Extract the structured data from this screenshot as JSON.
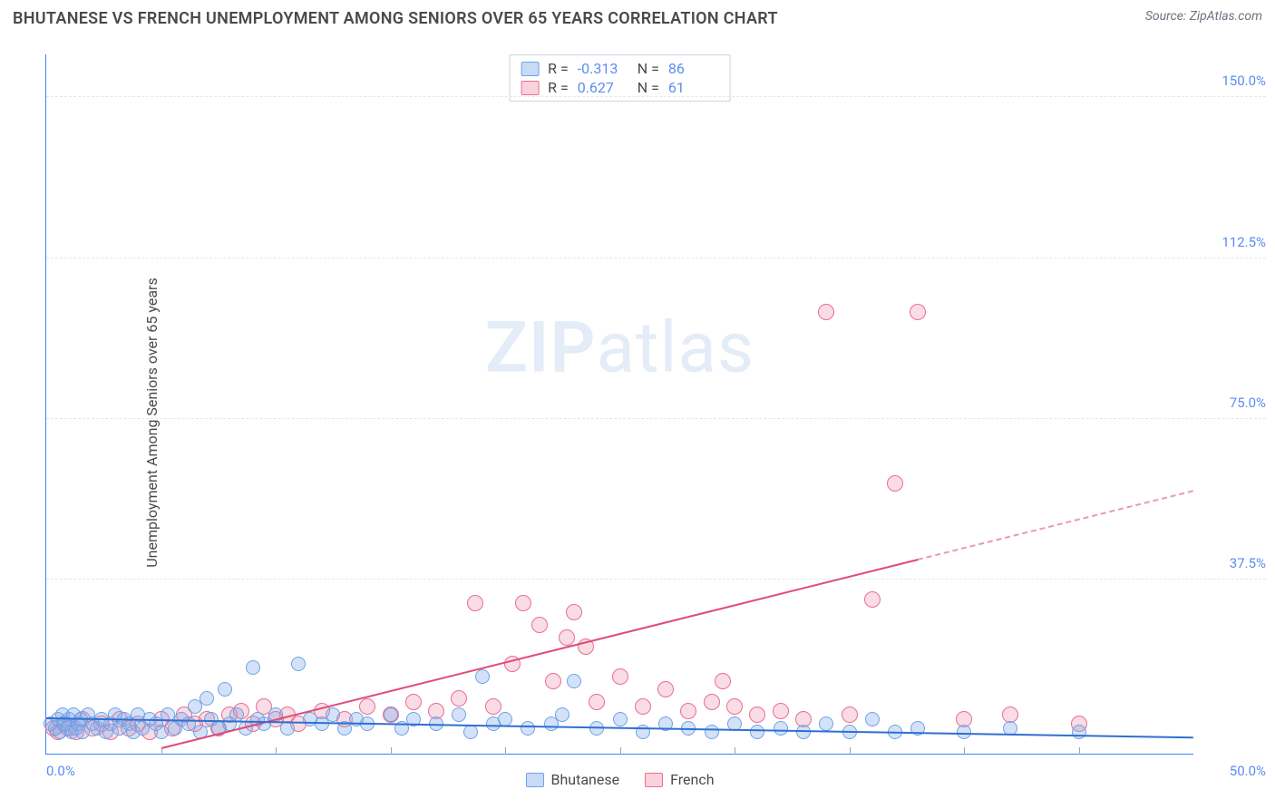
{
  "header": {
    "title": "BHUTANESE VS FRENCH UNEMPLOYMENT AMONG SENIORS OVER 65 YEARS CORRELATION CHART",
    "source_prefix": "Source: ",
    "source_name": "ZipAtlas.com"
  },
  "axes": {
    "ylabel": "Unemployment Among Seniors over 65 years",
    "xmin": 0,
    "xmax": 50,
    "ymin": -3,
    "ymax": 160,
    "yticks": [
      37.5,
      75.0,
      112.5,
      150.0
    ],
    "ytick_labels": [
      "37.5%",
      "75.0%",
      "112.5%",
      "150.0%"
    ],
    "x_left_label": "0.0%",
    "x_right_label": "50.0%",
    "xtick_positions": [
      5,
      10,
      15,
      20,
      25,
      30,
      35,
      40,
      45
    ],
    "grid_color": "#e5e7eb",
    "axis_color": "#3b82f6",
    "tick_label_color": "#5b8def"
  },
  "watermark": {
    "bold": "ZIP",
    "rest": "atlas"
  },
  "stats": {
    "rows": [
      {
        "swatch_fill": "#c7dbf6",
        "swatch_border": "#6ea2e8",
        "r_label": "R =",
        "r": "-0.313",
        "n_label": "N =",
        "n": "86"
      },
      {
        "swatch_fill": "#f9d2dc",
        "swatch_border": "#e86f91",
        "r_label": "R =",
        "r": "0.627",
        "n_label": "N =",
        "n": "61"
      }
    ]
  },
  "legend": {
    "items": [
      {
        "swatch_fill": "#c7dbf6",
        "swatch_border": "#6ea2e8",
        "label": "Bhutanese"
      },
      {
        "swatch_fill": "#f9d2dc",
        "swatch_border": "#e86f91",
        "label": "French"
      }
    ]
  },
  "series": {
    "bhutanese": {
      "color_fill": "rgba(129,173,235,0.35)",
      "color_border": "#6ea2e8",
      "marker_radius": 8,
      "trend": {
        "x1": 0,
        "y1": 5.0,
        "x2": 50,
        "y2": 0.5,
        "color": "#2f6fd1",
        "width": 2.5,
        "dash": false
      },
      "points": [
        [
          0.2,
          4
        ],
        [
          0.4,
          3
        ],
        [
          0.5,
          5
        ],
        [
          0.6,
          2
        ],
        [
          0.7,
          6
        ],
        [
          0.8,
          4
        ],
        [
          0.9,
          3
        ],
        [
          1.0,
          5
        ],
        [
          1.1,
          2
        ],
        [
          1.2,
          6
        ],
        [
          1.3,
          3
        ],
        [
          1.4,
          4
        ],
        [
          1.5,
          5
        ],
        [
          1.6,
          2
        ],
        [
          1.8,
          6
        ],
        [
          2.0,
          4
        ],
        [
          2.2,
          3
        ],
        [
          2.4,
          5
        ],
        [
          2.6,
          2
        ],
        [
          2.8,
          4
        ],
        [
          3.0,
          6
        ],
        [
          3.2,
          3
        ],
        [
          3.4,
          5
        ],
        [
          3.6,
          4
        ],
        [
          3.8,
          2
        ],
        [
          4.0,
          6
        ],
        [
          4.2,
          3
        ],
        [
          4.5,
          5
        ],
        [
          4.8,
          4
        ],
        [
          5.0,
          2
        ],
        [
          5.3,
          6
        ],
        [
          5.6,
          3
        ],
        [
          5.9,
          5
        ],
        [
          6.2,
          4
        ],
        [
          6.5,
          8
        ],
        [
          6.7,
          2
        ],
        [
          7.0,
          10
        ],
        [
          7.2,
          5
        ],
        [
          7.5,
          3
        ],
        [
          7.8,
          12
        ],
        [
          8.0,
          4
        ],
        [
          8.3,
          6
        ],
        [
          8.7,
          3
        ],
        [
          9.0,
          17
        ],
        [
          9.2,
          5
        ],
        [
          9.5,
          4
        ],
        [
          10.0,
          6
        ],
        [
          10.5,
          3
        ],
        [
          11.0,
          18
        ],
        [
          11.5,
          5
        ],
        [
          12.0,
          4
        ],
        [
          12.5,
          6
        ],
        [
          13.0,
          3
        ],
        [
          13.5,
          5
        ],
        [
          14.0,
          4
        ],
        [
          15.0,
          6
        ],
        [
          15.5,
          3
        ],
        [
          16.0,
          5
        ],
        [
          17.0,
          4
        ],
        [
          18.0,
          6
        ],
        [
          18.5,
          2
        ],
        [
          19.0,
          15
        ],
        [
          19.5,
          4
        ],
        [
          20.0,
          5
        ],
        [
          21.0,
          3
        ],
        [
          22.0,
          4
        ],
        [
          22.5,
          6
        ],
        [
          23.0,
          14
        ],
        [
          24.0,
          3
        ],
        [
          25.0,
          5
        ],
        [
          26.0,
          2
        ],
        [
          27.0,
          4
        ],
        [
          28.0,
          3
        ],
        [
          29.0,
          2
        ],
        [
          30.0,
          4
        ],
        [
          31.0,
          2
        ],
        [
          32.0,
          3
        ],
        [
          33.0,
          2
        ],
        [
          34.0,
          4
        ],
        [
          35.0,
          2
        ],
        [
          36.0,
          5
        ],
        [
          37.0,
          2
        ],
        [
          38.0,
          3
        ],
        [
          40.0,
          2
        ],
        [
          42.0,
          3
        ],
        [
          45.0,
          2
        ]
      ]
    },
    "french": {
      "color_fill": "rgba(236,140,168,0.30)",
      "color_border": "#e86f91",
      "marker_radius": 9,
      "trend_solid": {
        "x1": 5,
        "y1": -2,
        "x2": 38,
        "y2": 42,
        "color": "#e14b76",
        "width": 2.5
      },
      "trend_dash": {
        "x1": 38,
        "y1": 42,
        "x2": 50,
        "y2": 58,
        "color": "#e89ab0",
        "width": 2
      },
      "points": [
        [
          0.3,
          3
        ],
        [
          0.5,
          2
        ],
        [
          0.8,
          4
        ],
        [
          1.0,
          3
        ],
        [
          1.3,
          2
        ],
        [
          1.6,
          5
        ],
        [
          2.0,
          3
        ],
        [
          2.4,
          4
        ],
        [
          2.8,
          2
        ],
        [
          3.2,
          5
        ],
        [
          3.6,
          3
        ],
        [
          4.0,
          4
        ],
        [
          4.5,
          2
        ],
        [
          5.0,
          5
        ],
        [
          5.5,
          3
        ],
        [
          6.0,
          6
        ],
        [
          6.5,
          4
        ],
        [
          7.0,
          5
        ],
        [
          7.5,
          3
        ],
        [
          8.0,
          6
        ],
        [
          8.5,
          7
        ],
        [
          9.0,
          4
        ],
        [
          9.5,
          8
        ],
        [
          10.0,
          5
        ],
        [
          10.5,
          6
        ],
        [
          11.0,
          4
        ],
        [
          12.0,
          7
        ],
        [
          13.0,
          5
        ],
        [
          14.0,
          8
        ],
        [
          15.0,
          6
        ],
        [
          16.0,
          9
        ],
        [
          17.0,
          7
        ],
        [
          18.0,
          10
        ],
        [
          18.7,
          32
        ],
        [
          19.5,
          8
        ],
        [
          20.3,
          18
        ],
        [
          20.8,
          32
        ],
        [
          21.5,
          27
        ],
        [
          22.1,
          14
        ],
        [
          22.7,
          24
        ],
        [
          23.0,
          30
        ],
        [
          23.5,
          22
        ],
        [
          24.0,
          9
        ],
        [
          25.0,
          15
        ],
        [
          26.0,
          8
        ],
        [
          27.0,
          12
        ],
        [
          28.0,
          7
        ],
        [
          29.0,
          9
        ],
        [
          29.5,
          14
        ],
        [
          30.0,
          8
        ],
        [
          31.0,
          6
        ],
        [
          32.0,
          7
        ],
        [
          33.0,
          5
        ],
        [
          34.0,
          100
        ],
        [
          35.0,
          6
        ],
        [
          36.0,
          33
        ],
        [
          37.0,
          60
        ],
        [
          38.0,
          100
        ],
        [
          40.0,
          5
        ],
        [
          42.0,
          6
        ],
        [
          45.0,
          4
        ]
      ]
    }
  }
}
